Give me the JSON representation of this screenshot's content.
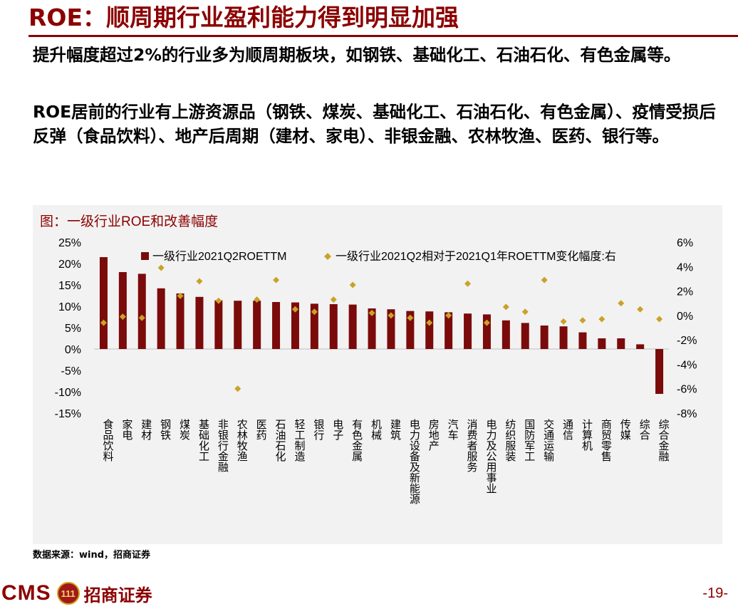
{
  "slide": {
    "title": "ROE：顺周期行业盈利能力得到明显加强",
    "paragraph1": "提升幅度超过2%的行业多为顺周期板块，如钢铁、基础化工、石油石化、有色金属等。",
    "paragraph2": "ROE居前的行业有上游资源品（钢铁、煤炭、基础化工、石油石化、有色金属）、疫情受损后反弹（食品饮料）、地产后周期（建材、家电）、非银金融、农林牧渔、医药、银行等。",
    "chart_title": "图：一级行业ROE和改善幅度",
    "source": "数据来源：wind，招商证券",
    "logo_text": "CMS",
    "logo_mark": "111",
    "logo_cn": "招商证券",
    "page_number": "-19-"
  },
  "colors": {
    "brand": "#8b0000",
    "bar": "#7b0a0a",
    "marker": "#c9a227",
    "panel": "#f2f2f2"
  },
  "chart_data": {
    "type": "bar",
    "title": "图：一级行业ROE和改善幅度",
    "categories": [
      "食品饮料",
      "家电",
      "建材",
      "钢铁",
      "煤炭",
      "基础化工",
      "非银行金融",
      "农林牧渔",
      "医药",
      "石油石化",
      "轻工制造",
      "银行",
      "电子",
      "有色金属",
      "机械",
      "建筑",
      "电力设备及新能源",
      "房地产",
      "汽车",
      "消费者服务",
      "电力及公用事业",
      "纺织服装",
      "国防军工",
      "交通运输",
      "通信",
      "计算机",
      "商贸零售",
      "传媒",
      "综合",
      "综合金融"
    ],
    "series": [
      {
        "name": "一级行业2021Q2ROETTM",
        "type": "bar",
        "axis": "left",
        "values": [
          21.5,
          18.0,
          17.6,
          14.2,
          13.0,
          12.2,
          11.4,
          11.3,
          11.3,
          11.0,
          10.9,
          10.6,
          10.5,
          10.4,
          9.5,
          9.3,
          8.9,
          8.8,
          8.6,
          8.3,
          8.1,
          6.7,
          6.1,
          5.5,
          5.3,
          3.9,
          2.5,
          2.5,
          1.1,
          -10.5
        ]
      },
      {
        "name": "一级行业2021Q2相对于2021Q1年ROETTM变化幅度:右",
        "type": "scatter",
        "axis": "right",
        "values": [
          -0.6,
          -0.1,
          -0.2,
          3.9,
          1.6,
          2.8,
          1.2,
          -6.0,
          1.3,
          2.9,
          0.5,
          0.3,
          1.3,
          2.5,
          0.2,
          0.0,
          -0.2,
          -0.6,
          0.0,
          2.6,
          -0.6,
          0.7,
          0.3,
          2.9,
          -0.5,
          -0.4,
          -0.3,
          1.0,
          0.5,
          -0.3
        ]
      }
    ],
    "y_left": {
      "min": -15,
      "max": 25,
      "step": 5,
      "suffix": "%"
    },
    "y_right": {
      "min": -8,
      "max": 6,
      "step": 2,
      "suffix": "%"
    },
    "legend_position": "top",
    "grid": false
  }
}
